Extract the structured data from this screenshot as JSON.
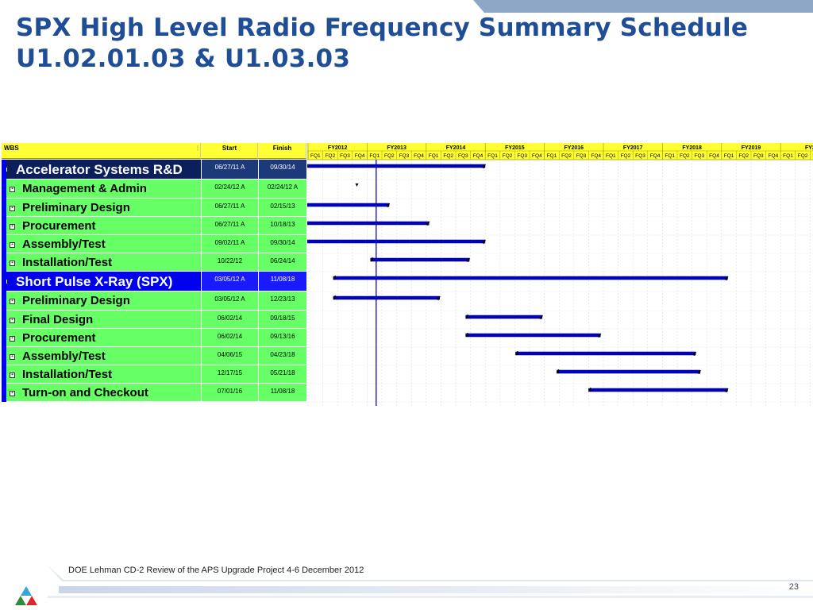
{
  "title": {
    "line1": "SPX High Level Radio Frequency Summary Schedule",
    "line2": "U1.02.01.03 & U1.03.03"
  },
  "table": {
    "headers": {
      "wbs": "WBS",
      "start": "Start",
      "finish": "Finish"
    },
    "fiscal_years": [
      "FY2012",
      "FY2013",
      "FY2014",
      "FY2015",
      "FY2016",
      "FY2017",
      "FY2018",
      "FY2019",
      "FY2"
    ],
    "quarters": [
      "FQ1",
      "FQ2",
      "FQ3",
      "FQ4"
    ],
    "rows": [
      {
        "name": "Accelerator Systems R&D",
        "start": "06/27/11 A",
        "finish": "09/30/14",
        "level": "summary"
      },
      {
        "name": "Management & Admin",
        "start": "02/24/12 A",
        "finish": "02/24/12 A",
        "level": "task"
      },
      {
        "name": "Preliminary Design",
        "start": "06/27/11 A",
        "finish": "02/15/13",
        "level": "task"
      },
      {
        "name": "Procurement",
        "start": "06/27/11 A",
        "finish": "10/18/13",
        "level": "task"
      },
      {
        "name": "Assembly/Test",
        "start": "09/02/11 A",
        "finish": "09/30/14",
        "level": "task"
      },
      {
        "name": "Installation/Test",
        "start": "10/22/12",
        "finish": "06/24/14",
        "level": "task"
      },
      {
        "name": "Short Pulse X-Ray (SPX)",
        "start": "03/05/12 A",
        "finish": "11/08/18",
        "level": "summary"
      },
      {
        "name": "Preliminary Design",
        "start": "03/05/12 A",
        "finish": "12/23/13",
        "level": "task"
      },
      {
        "name": "Final Design",
        "start": "06/02/14",
        "finish": "09/18/15",
        "level": "task"
      },
      {
        "name": "Procurement",
        "start": "06/02/14",
        "finish": "09/13/16",
        "level": "task"
      },
      {
        "name": "Assembly/Test",
        "start": "04/06/15",
        "finish": "04/23/18",
        "level": "task"
      },
      {
        "name": "Installation/Test",
        "start": "12/17/15",
        "finish": "05/21/18",
        "level": "task"
      },
      {
        "name": "Turn-on and Checkout",
        "start": "07/01/16",
        "finish": "11/08/18",
        "level": "task"
      }
    ]
  },
  "colors": {
    "title": "#1f4e96",
    "header_yellow": "#ffff33",
    "task_green": "#66ff66",
    "summary_navy": "#0a1f5c",
    "summary_blue": "#0000ee",
    "bar_blue": "#0000cc"
  },
  "footer": {
    "text": "DOE Lehman CD-2 Review of the APS Upgrade Project    4-6 December  2012",
    "page_number": "23"
  }
}
